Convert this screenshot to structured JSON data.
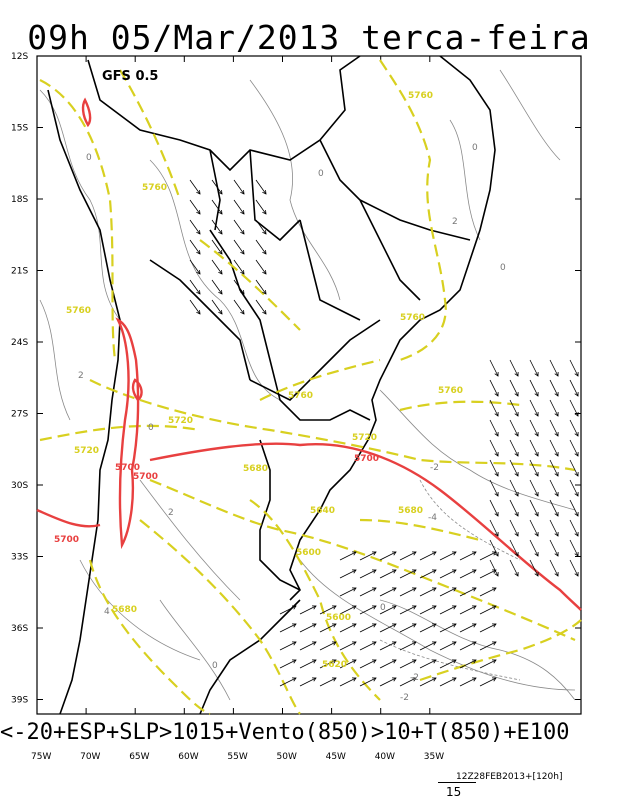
{
  "title": "09h 05/Mar/2013 terca-feira",
  "model_label": "GFS 0.5",
  "bottom_caption": "<-20+ESP+SLP>1015+Vento(850)>10+T(850)+E100",
  "run_info": "12Z28FEB2013+[120h]",
  "scale_value": "15",
  "lat_ticks": [
    "12S",
    "15S",
    "18S",
    "21S",
    "24S",
    "27S",
    "30S",
    "33S",
    "36S",
    "39S"
  ],
  "lon_ticks": [
    "75W",
    "70W",
    "65W",
    "60W",
    "55W",
    "50W",
    "45W",
    "40W",
    "35W"
  ],
  "colors": {
    "contour_yellow": "#d8d020",
    "contour_red": "#e84040",
    "gray": "#888888",
    "border": "#000000"
  },
  "labels": {
    "yellow": [
      "5760",
      "5760",
      "5760",
      "5760",
      "5760",
      "5760",
      "5720",
      "5720",
      "5720",
      "5680",
      "5640",
      "5680",
      "5600",
      "5680",
      "5600",
      "5620"
    ],
    "red": [
      "5700",
      "5700",
      "5700",
      "5700"
    ],
    "gray": [
      "0",
      "0",
      "0",
      "2",
      "0",
      "2",
      "4",
      "0",
      "-2",
      "-2",
      "0",
      "-4",
      "0",
      "-2",
      "2"
    ]
  }
}
